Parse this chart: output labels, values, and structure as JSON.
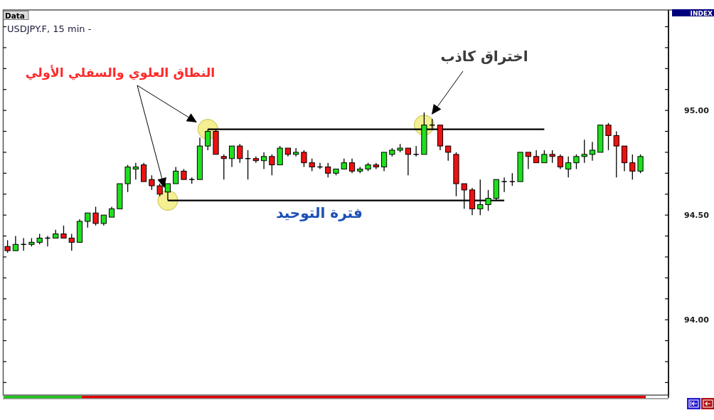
{
  "chart_data": {
    "type": "candlestick",
    "title": "USDJPY.F, 15 min -",
    "ylabel": "INDEX",
    "annotations": [
      "Data",
      "النطاق العلوي والسفلي الأولي",
      "اختراق كاذب",
      "فترة التوحيد"
    ],
    "categories": [
      null,
      null,
      null,
      null,
      null,
      null,
      null,
      null,
      null,
      null,
      null,
      null,
      null,
      null,
      null,
      null,
      null,
      null,
      null,
      null,
      null,
      null,
      null,
      null,
      null,
      null,
      null,
      null,
      null,
      null,
      null,
      null,
      null,
      null,
      null,
      null,
      null,
      null,
      null,
      null,
      null,
      null,
      null,
      null,
      null,
      null,
      null,
      null,
      null,
      null,
      null,
      null,
      null,
      null,
      null,
      null,
      null,
      null,
      null,
      null,
      null,
      null,
      null,
      null,
      null,
      null,
      null,
      null,
      null,
      null,
      null,
      null,
      null,
      null,
      null,
      null,
      null,
      null,
      null,
      null,
      null,
      null,
      null
    ],
    "ohlc": [
      [
        94.35,
        94.38,
        94.32,
        94.33
      ],
      [
        94.33,
        94.4,
        94.33,
        94.36
      ],
      [
        94.36,
        94.39,
        94.33,
        94.36
      ],
      [
        94.36,
        94.39,
        94.35,
        94.37
      ],
      [
        94.37,
        94.41,
        94.36,
        94.39
      ],
      [
        94.39,
        94.4,
        94.35,
        94.39
      ],
      [
        94.39,
        94.43,
        94.39,
        94.41
      ],
      [
        94.41,
        94.45,
        94.39,
        94.39
      ],
      [
        94.39,
        94.41,
        94.33,
        94.37
      ],
      [
        94.37,
        94.48,
        94.37,
        94.47
      ],
      [
        94.47,
        94.51,
        94.44,
        94.51
      ],
      [
        94.51,
        94.54,
        94.45,
        94.46
      ],
      [
        94.46,
        94.5,
        94.45,
        94.5
      ],
      [
        94.49,
        94.54,
        94.49,
        94.53
      ],
      [
        94.53,
        94.65,
        94.53,
        94.65
      ],
      [
        94.65,
        94.74,
        94.61,
        94.73
      ],
      [
        94.72,
        94.75,
        94.67,
        94.73
      ],
      [
        94.74,
        94.75,
        94.66,
        94.66
      ],
      [
        94.67,
        94.69,
        94.62,
        94.64
      ],
      [
        94.64,
        94.65,
        94.59,
        94.6
      ],
      [
        94.61,
        94.65,
        94.57,
        94.65
      ],
      [
        94.65,
        94.73,
        94.65,
        94.71
      ],
      [
        94.71,
        94.72,
        94.67,
        94.67
      ],
      [
        94.67,
        94.68,
        94.65,
        94.67
      ],
      [
        94.67,
        94.87,
        94.67,
        94.83
      ],
      [
        94.83,
        94.91,
        94.81,
        94.9
      ],
      [
        94.9,
        94.91,
        94.79,
        94.79
      ],
      [
        94.78,
        94.79,
        94.67,
        94.77
      ],
      [
        94.77,
        94.83,
        94.73,
        94.83
      ],
      [
        94.83,
        94.84,
        94.75,
        94.77
      ],
      [
        94.77,
        94.81,
        94.67,
        94.77
      ],
      [
        94.77,
        94.78,
        94.75,
        94.76
      ],
      [
        94.76,
        94.8,
        94.72,
        94.78
      ],
      [
        94.78,
        94.79,
        94.69,
        94.74
      ],
      [
        94.74,
        94.83,
        94.74,
        94.82
      ],
      [
        94.82,
        94.82,
        94.78,
        94.79
      ],
      [
        94.79,
        94.82,
        94.78,
        94.8
      ],
      [
        94.8,
        94.81,
        94.73,
        94.75
      ],
      [
        94.75,
        94.77,
        94.71,
        94.73
      ],
      [
        94.73,
        94.75,
        94.72,
        94.73
      ],
      [
        94.73,
        94.75,
        94.68,
        94.7
      ],
      [
        94.7,
        94.72,
        94.69,
        94.72
      ],
      [
        94.72,
        94.77,
        94.72,
        94.75
      ],
      [
        94.75,
        94.77,
        94.7,
        94.71
      ],
      [
        94.71,
        94.73,
        94.7,
        94.72
      ],
      [
        94.72,
        94.75,
        94.71,
        94.74
      ],
      [
        94.74,
        94.75,
        94.72,
        94.73
      ],
      [
        94.73,
        94.8,
        94.71,
        94.8
      ],
      [
        94.79,
        94.82,
        94.78,
        94.81
      ],
      [
        94.81,
        94.84,
        94.8,
        94.82
      ],
      [
        94.82,
        94.82,
        94.69,
        94.79
      ],
      [
        94.79,
        94.83,
        94.78,
        94.79
      ],
      [
        94.79,
        94.99,
        94.79,
        94.93
      ],
      [
        94.93,
        94.96,
        94.91,
        94.93
      ],
      [
        94.93,
        94.93,
        94.81,
        94.83
      ],
      [
        94.83,
        94.83,
        94.76,
        94.8
      ],
      [
        94.79,
        94.8,
        94.59,
        94.65
      ],
      [
        94.65,
        94.65,
        94.53,
        94.62
      ],
      [
        94.62,
        94.63,
        94.5,
        94.53
      ],
      [
        94.53,
        94.67,
        94.5,
        94.55
      ],
      [
        94.55,
        94.62,
        94.52,
        94.58
      ],
      [
        94.58,
        94.67,
        94.57,
        94.67
      ],
      [
        94.66,
        94.68,
        94.61,
        94.66
      ],
      [
        94.66,
        94.7,
        94.64,
        94.66
      ],
      [
        94.66,
        94.8,
        94.66,
        94.8
      ],
      [
        94.8,
        94.8,
        94.72,
        94.78
      ],
      [
        94.78,
        94.81,
        94.75,
        94.75
      ],
      [
        94.75,
        94.81,
        94.75,
        94.79
      ],
      [
        94.79,
        94.81,
        94.75,
        94.78
      ],
      [
        94.78,
        94.79,
        94.72,
        94.73
      ],
      [
        94.72,
        94.78,
        94.68,
        94.75
      ],
      [
        94.75,
        94.79,
        94.72,
        94.78
      ],
      [
        94.78,
        94.86,
        94.75,
        94.79
      ],
      [
        94.79,
        94.85,
        94.76,
        94.81
      ],
      [
        94.8,
        94.93,
        94.8,
        94.93
      ],
      [
        94.93,
        94.94,
        94.81,
        94.88
      ],
      [
        94.88,
        94.9,
        94.68,
        94.83
      ],
      [
        94.83,
        94.83,
        94.71,
        94.75
      ],
      [
        94.75,
        94.79,
        94.67,
        94.71
      ],
      [
        94.71,
        94.79,
        94.7,
        94.78
      ],
      null,
      null,
      null
    ],
    "colors": [
      "#ee1111",
      "#1ee01e",
      "#000000",
      "#1ee01e",
      "#1ee01e",
      "#000000",
      "#1ee01e",
      "#ee1111",
      "#ee1111",
      "#1ee01e",
      "#1ee01e",
      "#ee1111",
      "#1ee01e",
      "#1ee01e",
      "#1ee01e",
      "#1ee01e",
      "#1ee01e",
      "#ee1111",
      "#ee1111",
      "#ee1111",
      "#1ee01e",
      "#1ee01e",
      "#ee1111",
      "#000000",
      "#1ee01e",
      "#1ee01e",
      "#ee1111",
      "#ee1111",
      "#1ee01e",
      "#ee1111",
      "#000000",
      "#ee1111",
      "#1ee01e",
      "#ee1111",
      "#1ee01e",
      "#ee1111",
      "#1ee01e",
      "#ee1111",
      "#ee1111",
      "#000000",
      "#ee1111",
      "#1ee01e",
      "#1ee01e",
      "#ee1111",
      "#1ee01e",
      "#1ee01e",
      "#ee1111",
      "#1ee01e",
      "#1ee01e",
      "#1ee01e",
      "#ee1111",
      "#000000",
      "#1ee01e",
      "#000000",
      "#ee1111",
      "#ee1111",
      "#ee1111",
      "#ee1111",
      "#ee1111",
      "#1ee01e",
      "#1ee01e",
      "#1ee01e",
      "#000000",
      "#000000",
      "#1ee01e",
      "#ee1111",
      "#ee1111",
      "#1ee01e",
      "#ee1111",
      "#ee1111",
      "#1ee01e",
      "#1ee01e",
      "#1ee01e",
      "#1ee01e",
      "#1ee01e",
      "#ee1111",
      "#ee1111",
      "#ee1111",
      "#ee1111",
      "#1ee01e",
      null,
      null,
      null
    ],
    "series": [
      {
        "type": "scatter",
        "marker": "circle",
        "color": "#f4ef90",
        "values": [
          null,
          null,
          null,
          null,
          null,
          null,
          null,
          null,
          null,
          null,
          null,
          null,
          null,
          null,
          null,
          null,
          null,
          null,
          null,
          null,
          94.57,
          null,
          null,
          null,
          null,
          94.91,
          null,
          null,
          null,
          null,
          null,
          null,
          null,
          null,
          null,
          null,
          null,
          null,
          null,
          null,
          null,
          null,
          null,
          null,
          null,
          null,
          null,
          null,
          null,
          null,
          null,
          null,
          94.93,
          null,
          null,
          null,
          null,
          null,
          null,
          null,
          null,
          null,
          null,
          null,
          null,
          null,
          null,
          null,
          null,
          null,
          null,
          null,
          null,
          null,
          null,
          null,
          null,
          null,
          null,
          null,
          null,
          null,
          null
        ]
      },
      {
        "type": "line",
        "color": "#000000",
        "values": [
          null,
          null,
          null,
          null,
          null,
          null,
          null,
          null,
          null,
          null,
          null,
          null,
          null,
          null,
          null,
          null,
          null,
          null,
          null,
          null,
          null,
          null,
          null,
          null,
          null,
          94.91,
          94.91,
          94.91,
          94.91,
          94.91,
          94.91,
          94.91,
          94.91,
          94.91,
          94.91,
          94.91,
          94.91,
          94.91,
          94.91,
          94.91,
          94.91,
          94.91,
          94.91,
          94.91,
          94.91,
          94.91,
          94.91,
          94.91,
          94.91,
          94.91,
          94.91,
          94.91,
          94.91,
          94.91,
          94.91,
          94.91,
          94.91,
          94.91,
          94.91,
          94.91,
          94.91,
          94.91,
          94.91,
          94.91,
          94.91,
          94.91,
          94.91,
          94.91,
          null,
          null,
          null,
          null,
          null,
          null,
          null,
          null,
          null,
          null,
          null,
          null,
          null,
          null,
          null
        ]
      },
      {
        "type": "line",
        "color": "#000000",
        "values": [
          null,
          null,
          null,
          null,
          null,
          null,
          null,
          null,
          null,
          null,
          null,
          null,
          null,
          null,
          null,
          null,
          null,
          null,
          null,
          null,
          94.57,
          94.57,
          94.57,
          94.57,
          94.57,
          94.57,
          94.57,
          94.57,
          94.57,
          94.57,
          94.57,
          94.57,
          94.57,
          94.57,
          94.57,
          94.57,
          94.57,
          94.57,
          94.57,
          94.57,
          94.57,
          94.57,
          94.57,
          94.57,
          94.57,
          94.57,
          94.57,
          94.57,
          94.57,
          94.57,
          94.57,
          94.57,
          94.57,
          94.57,
          94.57,
          94.57,
          94.57,
          94.57,
          94.57,
          94.57,
          94.57,
          94.57,
          94.57,
          null,
          null,
          null,
          null,
          null,
          null,
          null,
          null,
          null,
          null,
          null,
          null,
          null,
          null,
          null,
          null,
          null,
          null,
          null,
          null
        ]
      }
    ],
    "ylim": [
      93.64,
      95.48
    ],
    "yticks": [
      {
        "value": 93.7,
        "label": null
      },
      {
        "value": 93.8,
        "label": null
      },
      {
        "value": 93.9,
        "label": null
      },
      {
        "value": 94,
        "label": "94.00"
      },
      {
        "value": 94.1,
        "label": null
      },
      {
        "value": 94.2,
        "label": null
      },
      {
        "value": 94.3,
        "label": null
      },
      {
        "value": 94.4,
        "label": null
      },
      {
        "value": 94.5,
        "label": "94.50"
      },
      {
        "value": 94.6,
        "label": null
      },
      {
        "value": 94.7,
        "label": null
      },
      {
        "value": 94.8,
        "label": null
      },
      {
        "value": 94.9,
        "label": null
      },
      {
        "value": 95,
        "label": "95.00"
      },
      {
        "value": 95.1,
        "label": null
      },
      {
        "value": 95.2,
        "label": null
      },
      {
        "value": 95.3,
        "label": null
      },
      {
        "value": 95.4,
        "label": null
      }
    ],
    "tick_labels": "y"
  }
}
